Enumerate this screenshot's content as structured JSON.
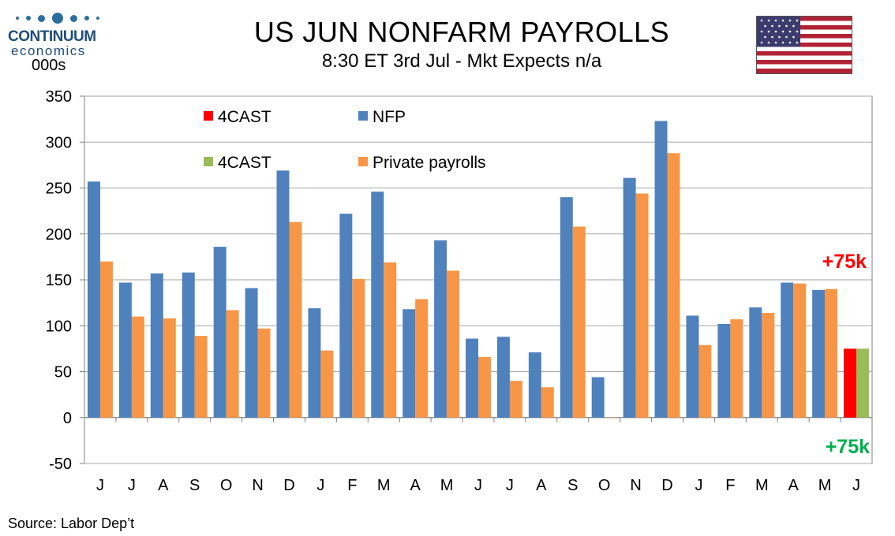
{
  "header": {
    "title": "US JUN NONFARM PAYROLLS",
    "subtitle": "8:30 ET 3rd Jul - Mkt Expects n/a",
    "unit_label": "000s",
    "logo_name": "CONTINUUM",
    "logo_sub": "economics"
  },
  "flag_icon": "us-flag-icon",
  "footer": {
    "source": "Source: Labor Dep’t"
  },
  "chart_data": {
    "type": "bar",
    "title": "US JUN NONFARM PAYROLLS",
    "ylabel": "000s",
    "ylim": [
      -50,
      350
    ],
    "yticks": [
      350,
      300,
      250,
      200,
      150,
      100,
      50,
      0,
      -50
    ],
    "grid": true,
    "legend_position": "top-left",
    "categories": [
      "J",
      "J",
      "A",
      "S",
      "O",
      "N",
      "D",
      "J",
      "F",
      "M",
      "A",
      "M",
      "J",
      "J",
      "A",
      "S",
      "O",
      "N",
      "D",
      "J",
      "F",
      "M",
      "A",
      "M",
      "J"
    ],
    "series": [
      {
        "name": "NFP",
        "color": "#4f81bd",
        "values": [
          257,
          147,
          157,
          158,
          186,
          141,
          269,
          119,
          222,
          246,
          118,
          193,
          86,
          88,
          71,
          240,
          44,
          261,
          323,
          111,
          102,
          120,
          147,
          139,
          null
        ]
      },
      {
        "name": "Private payrolls",
        "color": "#f79646",
        "values": [
          170,
          110,
          108,
          89,
          117,
          97,
          213,
          73,
          151,
          169,
          129,
          160,
          66,
          40,
          33,
          208,
          0,
          244,
          288,
          79,
          107,
          114,
          146,
          140,
          null
        ]
      },
      {
        "name": "4CAST",
        "color": "#ff0000",
        "values": [
          null,
          null,
          null,
          null,
          null,
          null,
          null,
          null,
          null,
          null,
          null,
          null,
          null,
          null,
          null,
          null,
          null,
          null,
          null,
          null,
          null,
          null,
          null,
          null,
          75
        ]
      },
      {
        "name": "4CAST",
        "color": "#9bbb59",
        "values": [
          null,
          null,
          null,
          null,
          null,
          null,
          null,
          null,
          null,
          null,
          null,
          null,
          null,
          null,
          null,
          null,
          null,
          null,
          null,
          null,
          null,
          null,
          null,
          null,
          75
        ]
      }
    ],
    "annotations": [
      {
        "text": "+75k",
        "color": "#ff0000"
      },
      {
        "text": "+75k",
        "color": "#00b050"
      }
    ]
  }
}
